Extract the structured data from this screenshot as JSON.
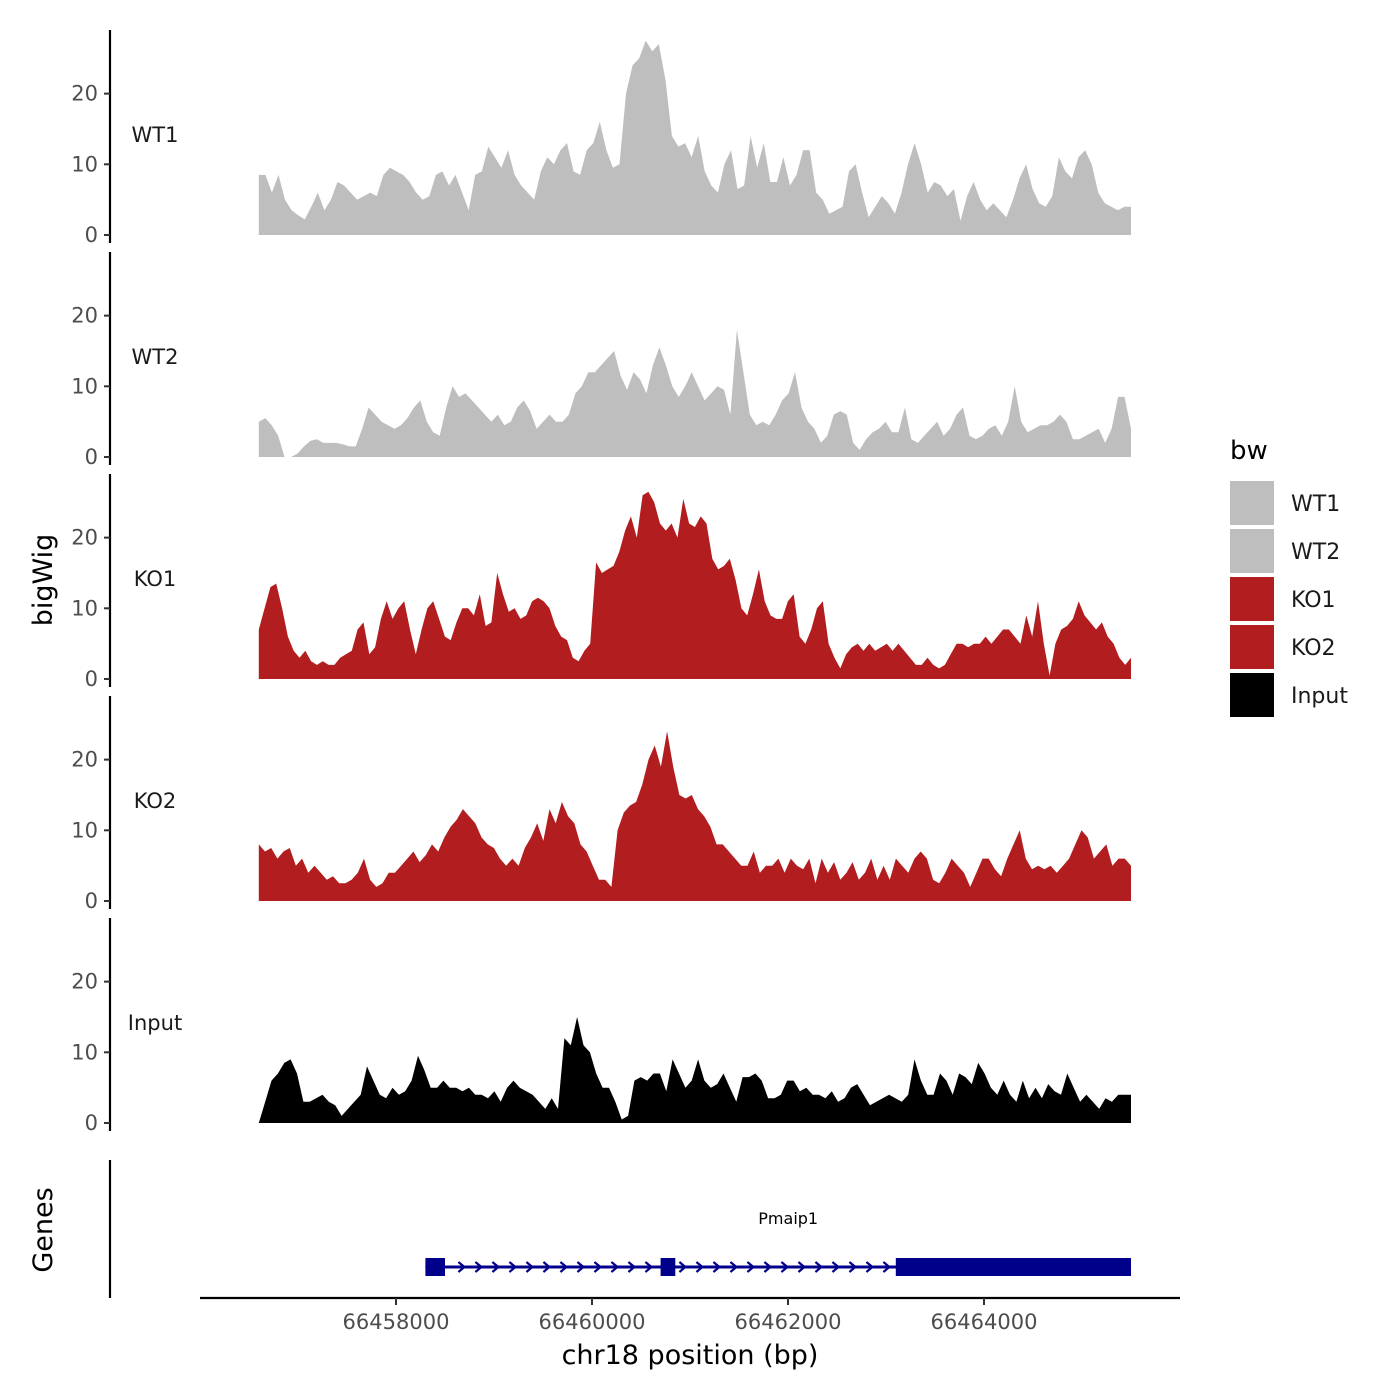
{
  "chart_data": {
    "type": "area",
    "title": "",
    "xlabel": "chr18 position (bp)",
    "ylabel": "bigWig",
    "genes_label": "Genes",
    "xlim": [
      66456000,
      66466000
    ],
    "ylim": [
      0,
      29
    ],
    "xticks": [
      66458000,
      66460000,
      66462000,
      66464000
    ],
    "xtick_labels": [
      "66458000",
      "66460000",
      "66462000",
      "66464000"
    ],
    "yticks": [
      0,
      10,
      20
    ],
    "ytick_labels": [
      "0",
      "10",
      "20"
    ],
    "legend": {
      "title": "bw",
      "position": "right",
      "entries": [
        {
          "label": "WT1",
          "color": "#bebebe"
        },
        {
          "label": "WT2",
          "color": "#bebebe"
        },
        {
          "label": "KO1",
          "color": "#b21d1f"
        },
        {
          "label": "KO2",
          "color": "#b21d1f"
        },
        {
          "label": "Input",
          "color": "#000000"
        }
      ]
    },
    "series": [
      {
        "name": "WT1",
        "label": "WT1",
        "color": "#bebebe",
        "x_start": 66456600,
        "x_end": 66465500,
        "values": [
          8.5,
          8.5,
          6,
          8.5,
          5,
          3.5,
          2.8,
          2.2,
          4,
          6,
          3.5,
          5,
          7.5,
          7,
          6,
          5,
          5.5,
          6,
          5.5,
          8.5,
          9.5,
          9,
          8.5,
          7.5,
          6,
          5,
          5.5,
          8.5,
          9,
          7,
          8.5,
          6,
          3.5,
          8.5,
          9,
          12.5,
          11,
          9.5,
          12,
          8.5,
          7,
          6,
          5,
          9,
          11,
          10,
          12,
          13,
          9,
          8.5,
          12,
          13,
          16,
          12,
          9.5,
          10,
          20,
          24,
          25,
          27.5,
          26,
          27,
          22,
          14,
          12.5,
          13,
          11,
          14,
          9,
          7,
          6,
          10,
          12,
          6.5,
          7,
          14,
          9.5,
          13,
          7.5,
          7.5,
          11,
          7,
          8.5,
          12,
          12,
          6,
          5,
          3,
          3.5,
          4,
          9,
          10,
          6,
          2.5,
          4,
          5.5,
          4.5,
          3,
          6,
          10,
          13,
          10,
          6,
          7.5,
          7,
          5.5,
          6.5,
          2,
          5.5,
          7.5,
          5,
          3.5,
          4.5,
          3.5,
          2.5,
          5,
          8,
          10,
          6.5,
          4.5,
          4,
          5.5,
          11,
          9,
          8,
          11,
          12,
          10,
          6,
          4.5,
          4,
          3.5,
          4,
          4
        ]
      },
      {
        "name": "WT2",
        "label": "WT2",
        "color": "#bebebe",
        "x_start": 66456600,
        "x_end": 66465500,
        "values": [
          5,
          5.5,
          4.5,
          3,
          0,
          0,
          0.5,
          1.5,
          2.3,
          2.5,
          2,
          2,
          2,
          1.8,
          1.5,
          1.5,
          4,
          7,
          6,
          5,
          4.5,
          4,
          4.5,
          5.5,
          7,
          8,
          5,
          3.5,
          3,
          7,
          10,
          8.5,
          9,
          8,
          7,
          6,
          5,
          6,
          4.5,
          5,
          7,
          8,
          6.5,
          4,
          5,
          6,
          5,
          5,
          6,
          9,
          10,
          12,
          12,
          13,
          14,
          15,
          11.5,
          9.5,
          12,
          11,
          9,
          13,
          15.5,
          13,
          10,
          8.5,
          10,
          12,
          10,
          8,
          9,
          10,
          9.5,
          6,
          18,
          12,
          6,
          4.5,
          5,
          4.5,
          6,
          8,
          9,
          12,
          7,
          5,
          4,
          2,
          3,
          6,
          6.5,
          6,
          2,
          1,
          2.5,
          3.5,
          4,
          5,
          3.5,
          3.5,
          7,
          2.5,
          2,
          3,
          4,
          5,
          3,
          4,
          6,
          7,
          3,
          2.5,
          3,
          4,
          4.5,
          3,
          5,
          10,
          5,
          3.5,
          4,
          4.5,
          4.5,
          5,
          6,
          5,
          2.5,
          2.5,
          3,
          3.5,
          4,
          2,
          4,
          8.5,
          8.5,
          4
        ]
      },
      {
        "name": "KO1",
        "label": "KO1",
        "color": "#b21d1f",
        "x_start": 66456600,
        "x_end": 66465500,
        "values": [
          7,
          10,
          13,
          13.5,
          10,
          6,
          4,
          3,
          4,
          2.5,
          2,
          2.5,
          2,
          2,
          3,
          3.5,
          4,
          7,
          8,
          3.5,
          4.5,
          8.5,
          11,
          8.5,
          10,
          11,
          7,
          3.5,
          7,
          10,
          11,
          8.5,
          6,
          5.5,
          8,
          10,
          10,
          9,
          12,
          7.5,
          8,
          15,
          12,
          9.5,
          10,
          8.5,
          9,
          11,
          11.5,
          11,
          10,
          7.5,
          6,
          5.5,
          3,
          2.5,
          4,
          5,
          16.5,
          15,
          15.5,
          16,
          18,
          21,
          23,
          20,
          26,
          26.5,
          25,
          22,
          21,
          22,
          20,
          25.5,
          22,
          21.5,
          23,
          22,
          17,
          15.5,
          16,
          17,
          14,
          10,
          9,
          12,
          15.5,
          11,
          9,
          8.5,
          8.5,
          11,
          12,
          6,
          5,
          7,
          10,
          11,
          5,
          3,
          1.5,
          3.5,
          4.5,
          5,
          4,
          5,
          4,
          4.5,
          5,
          4,
          5,
          4,
          3,
          2,
          2,
          3,
          2,
          1.5,
          2,
          3.5,
          5,
          5,
          4.5,
          5,
          5,
          6,
          5,
          6,
          7,
          7,
          6,
          5,
          9,
          6,
          11,
          5,
          0.5,
          5,
          7,
          7.5,
          8.5,
          11,
          9,
          8,
          7,
          8,
          6,
          5,
          3,
          2,
          3
        ]
      },
      {
        "name": "KO2",
        "label": "KO2",
        "color": "#b21d1f",
        "x_start": 66456600,
        "x_end": 66465500,
        "values": [
          8,
          7,
          7.5,
          6,
          7,
          7.5,
          5,
          6,
          4,
          5,
          4,
          3,
          3.5,
          2.5,
          2.5,
          3,
          4,
          6,
          3,
          2,
          2.5,
          4,
          4,
          5,
          6,
          7,
          5.5,
          6.5,
          8,
          7,
          9,
          10.5,
          11.5,
          13,
          12,
          11,
          9,
          8,
          7.5,
          6,
          5,
          6,
          5,
          7.5,
          9,
          11,
          8.5,
          13,
          11,
          14,
          12,
          11,
          8,
          7,
          5,
          3,
          3,
          2,
          10,
          12.5,
          13.5,
          14,
          16.5,
          20,
          22,
          19,
          24,
          19,
          15,
          14.5,
          15,
          13,
          12,
          10.5,
          8,
          8,
          7,
          6,
          5,
          5,
          7,
          4,
          5,
          5,
          6,
          4,
          6,
          5,
          4.5,
          6,
          2.5,
          6,
          4,
          5.5,
          3,
          4,
          5.5,
          3,
          4,
          6,
          3,
          5,
          3,
          6,
          5,
          4,
          6,
          7,
          6,
          3,
          2.5,
          4,
          6,
          5,
          4,
          2,
          4,
          6,
          6,
          4.5,
          3.5,
          6,
          8,
          10,
          6,
          4.5,
          5,
          4.5,
          5,
          4,
          5,
          6,
          8,
          10,
          9,
          6,
          7,
          8,
          5,
          6,
          6,
          5
        ]
      },
      {
        "name": "Input",
        "label": "Input",
        "color": "#000000",
        "x_start": 66456600,
        "x_end": 66465500,
        "values": [
          0,
          3,
          6,
          7,
          8.5,
          9,
          7,
          3,
          3,
          3.5,
          4,
          3,
          2.5,
          1,
          2,
          3,
          4,
          8,
          6,
          4,
          3.5,
          5,
          4,
          4.5,
          6,
          9.5,
          7.5,
          5,
          5,
          6,
          5,
          5,
          4.5,
          5,
          4,
          4,
          3.5,
          4.5,
          3,
          5,
          6,
          5,
          4.5,
          4,
          3,
          2,
          3.5,
          2,
          12,
          11,
          15,
          11,
          10,
          7,
          5,
          5,
          3,
          0.5,
          1,
          6,
          6.5,
          6,
          7,
          7,
          4.5,
          9,
          7,
          5,
          6,
          9,
          6,
          5,
          5.5,
          7,
          5,
          3,
          6.5,
          6.5,
          7,
          6,
          3.5,
          3.5,
          4,
          6,
          6,
          4.5,
          5,
          4,
          4,
          3.5,
          4.5,
          3,
          3.5,
          5,
          5.5,
          4,
          2.5,
          3,
          3.5,
          4,
          3.5,
          3,
          4,
          9,
          6,
          4,
          4,
          7,
          6,
          4,
          7,
          6.5,
          5.5,
          8.5,
          7,
          5,
          4,
          6,
          4,
          3,
          6,
          3.5,
          5,
          3.5,
          5.5,
          4.5,
          4,
          7,
          5,
          3,
          4,
          3,
          2,
          3.5,
          3,
          4,
          4,
          4
        ]
      }
    ],
    "gene_track": {
      "gene": "Pmaip1",
      "color": "#00008b",
      "strand": "+",
      "start": 66458300,
      "end": 66465500,
      "exons": [
        [
          66458300,
          66458500
        ],
        [
          66460700,
          66460850
        ],
        [
          66463100,
          66465500
        ]
      ]
    }
  }
}
